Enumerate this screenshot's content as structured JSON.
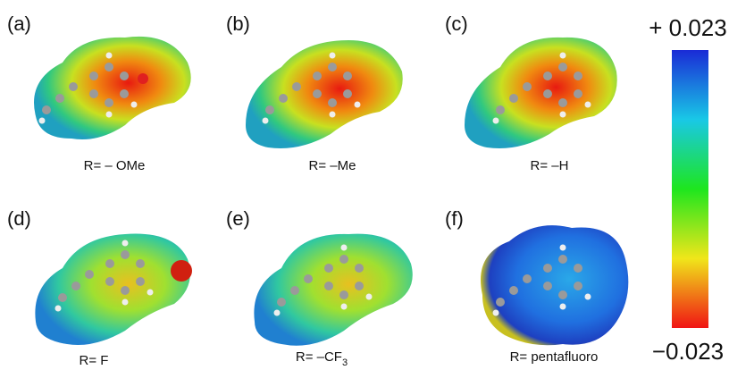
{
  "panels": [
    {
      "label": "(a)",
      "caption": "R= – OMe"
    },
    {
      "label": "(b)",
      "caption": "R= –Me"
    },
    {
      "label": "(c)",
      "caption": "R= –H"
    },
    {
      "label": "(d)",
      "caption": "R= F"
    },
    {
      "label": "(e)",
      "caption": "R= –CF",
      "subscript": "3"
    },
    {
      "label": "(f)",
      "caption": "R= pentafluoro"
    }
  ],
  "colorbar": {
    "max_label": "+ 0.023",
    "min_label": "−0.023"
  }
}
